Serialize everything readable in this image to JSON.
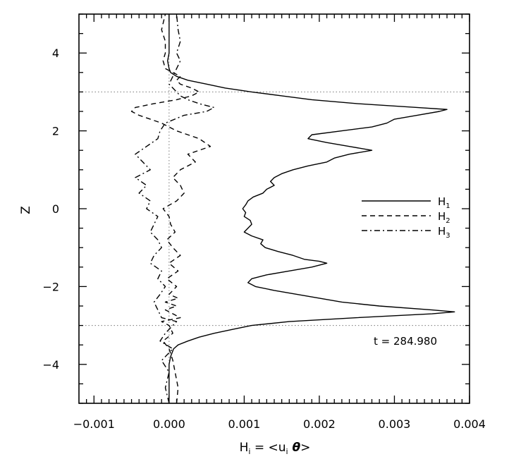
{
  "chart_data": {
    "type": "line",
    "title": "",
    "xlabel": {
      "main": "H",
      "sub": "i",
      "eq": " = <u",
      "sub2": "i",
      "theta": " θ",
      "close": ">"
    },
    "ylabel": "Z",
    "xlim": [
      -0.0012,
      0.004
    ],
    "ylim": [
      -5,
      5
    ],
    "x_ticks": [
      -0.001,
      0.0,
      0.001,
      0.002,
      0.003,
      0.004
    ],
    "x_tick_labels": [
      "−0.001",
      "0.000",
      "0.001",
      "0.002",
      "0.003",
      "0.004"
    ],
    "y_ticks": [
      -4,
      -2,
      0,
      2,
      4
    ],
    "y_tick_labels": [
      "−4",
      "−2",
      "0",
      "2",
      "4"
    ],
    "reference_lines": {
      "vertical_x": 0.0,
      "horizontal_z": [
        3,
        -3
      ]
    },
    "annotation": "t = 284.980",
    "legend": {
      "placement": "right-middle",
      "entries": [
        {
          "main": "H",
          "sub": "1",
          "dash": "solid"
        },
        {
          "main": "H",
          "sub": "2",
          "dash": "dashed"
        },
        {
          "main": "H",
          "sub": "3",
          "dash": "dashdot"
        }
      ]
    },
    "series": [
      {
        "key": "H1",
        "dash": "solid",
        "z": [
          -5.0,
          -4.5,
          -4.0,
          -3.8,
          -3.6,
          -3.5,
          -3.4,
          -3.3,
          -3.2,
          -3.1,
          -3.0,
          -2.9,
          -2.8,
          -2.7,
          -2.65,
          -2.6,
          -2.5,
          -2.4,
          -2.3,
          -2.2,
          -2.1,
          -2.0,
          -1.9,
          -1.8,
          -1.7,
          -1.6,
          -1.5,
          -1.4,
          -1.35,
          -1.3,
          -1.2,
          -1.1,
          -1.0,
          -0.9,
          -0.8,
          -0.7,
          -0.6,
          -0.5,
          -0.4,
          -0.3,
          -0.2,
          -0.1,
          0.0,
          0.1,
          0.2,
          0.3,
          0.4,
          0.5,
          0.6,
          0.7,
          0.8,
          0.9,
          1.0,
          1.1,
          1.2,
          1.3,
          1.4,
          1.5,
          1.6,
          1.7,
          1.8,
          1.9,
          2.0,
          2.1,
          2.2,
          2.3,
          2.4,
          2.5,
          2.55,
          2.6,
          2.7,
          2.8,
          2.9,
          3.0,
          3.1,
          3.2,
          3.3,
          3.4,
          3.5,
          3.6,
          3.8,
          4.0,
          4.5,
          5.0
        ],
        "x": [
          0.0,
          0.0,
          0.0,
          2e-05,
          6e-05,
          0.00012,
          0.00025,
          0.0004,
          0.0006,
          0.00085,
          0.0011,
          0.0016,
          0.0025,
          0.0035,
          0.0038,
          0.0035,
          0.0028,
          0.0023,
          0.002,
          0.0017,
          0.0014,
          0.00115,
          0.00105,
          0.0011,
          0.0013,
          0.0016,
          0.0019,
          0.0021,
          0.002,
          0.0018,
          0.00165,
          0.00145,
          0.00128,
          0.00122,
          0.00125,
          0.0011,
          0.001,
          0.00105,
          0.0011,
          0.00108,
          0.001,
          0.00102,
          0.00098,
          0.00102,
          0.00105,
          0.00112,
          0.00125,
          0.0013,
          0.0014,
          0.00135,
          0.0014,
          0.0015,
          0.00165,
          0.00185,
          0.0021,
          0.0022,
          0.0024,
          0.0027,
          0.0024,
          0.0021,
          0.00185,
          0.0019,
          0.0023,
          0.0027,
          0.0029,
          0.003,
          0.0033,
          0.0036,
          0.0037,
          0.0033,
          0.0025,
          0.0019,
          0.0015,
          0.0011,
          0.00075,
          0.0005,
          0.00025,
          0.0001,
          2e-05,
          0.0,
          -2e-05,
          0.0,
          0.0,
          0.0
        ]
      },
      {
        "key": "H2",
        "dash": "dashed",
        "z": [
          -5.0,
          -4.6,
          -4.2,
          -3.9,
          -3.6,
          -3.4,
          -3.2,
          -3.0,
          -2.9,
          -2.8,
          -2.7,
          -2.6,
          -2.5,
          -2.4,
          -2.3,
          -2.2,
          -2.0,
          -1.8,
          -1.6,
          -1.4,
          -1.2,
          -1.0,
          -0.8,
          -0.6,
          -0.4,
          -0.2,
          0.0,
          0.2,
          0.4,
          0.6,
          0.8,
          1.0,
          1.2,
          1.4,
          1.6,
          1.8,
          2.0,
          2.2,
          2.4,
          2.5,
          2.6,
          2.7,
          2.8,
          2.9,
          3.0,
          3.1,
          3.2,
          3.3,
          3.4,
          3.6,
          3.8,
          4.0,
          4.3,
          4.6,
          5.0
        ],
        "x": [
          0.0001,
          0.00012,
          8e-05,
          5e-05,
          0.0,
          -8e-05,
          5e-05,
          0.0,
          -0.0001,
          0.00015,
          5e-05,
          -5e-05,
          0.0001,
          -5e-05,
          0.00012,
          0.0,
          0.0001,
          -3e-05,
          0.00012,
          0.0,
          0.00015,
          5e-05,
          -3e-05,
          8e-05,
          2e-05,
          0.0,
          -8e-05,
          0.0001,
          0.0002,
          0.00015,
          5e-05,
          0.00015,
          0.00035,
          0.00025,
          0.00055,
          0.0004,
          0.0001,
          -0.0001,
          -0.0004,
          -0.0005,
          -0.00045,
          -0.0002,
          0.0001,
          0.0003,
          0.0004,
          0.0003,
          0.00015,
          0.0001,
          0.00015,
          -5e-05,
          -8e-05,
          -5e-05,
          -5e-05,
          -0.0001,
          -5e-05
        ]
      },
      {
        "key": "H3",
        "dash": "dashdot",
        "z": [
          -5.0,
          -4.6,
          -4.2,
          -3.9,
          -3.6,
          -3.4,
          -3.2,
          -3.0,
          -2.9,
          -2.8,
          -2.6,
          -2.4,
          -2.2,
          -2.0,
          -1.8,
          -1.6,
          -1.4,
          -1.2,
          -1.0,
          -0.8,
          -0.6,
          -0.4,
          -0.2,
          0.0,
          0.2,
          0.4,
          0.6,
          0.8,
          1.0,
          1.2,
          1.4,
          1.6,
          1.8,
          2.0,
          2.2,
          2.4,
          2.5,
          2.6,
          2.7,
          2.8,
          2.9,
          3.0,
          3.2,
          3.4,
          3.6,
          3.8,
          4.0,
          4.3,
          4.6,
          5.0
        ],
        "x": [
          0.0,
          -5e-05,
          0.0,
          -0.0001,
          5e-05,
          -0.00012,
          -5e-05,
          5e-05,
          0.0001,
          -0.0001,
          -0.00015,
          -0.0002,
          -0.00012,
          -5e-05,
          -0.00015,
          -0.0001,
          -0.00025,
          -0.0002,
          -0.0001,
          -0.00015,
          -0.00025,
          -0.0002,
          -0.00015,
          -0.0003,
          -0.00025,
          -0.0004,
          -0.0003,
          -0.00045,
          -0.00025,
          -0.00035,
          -0.00045,
          -0.0003,
          -0.00015,
          -0.00012,
          -5e-05,
          0.0002,
          0.0005,
          0.0006,
          0.0004,
          0.00025,
          0.00015,
          0.0001,
          0.0,
          5e-05,
          0.0001,
          0.00015,
          0.0001,
          0.00015,
          0.00012,
          0.0001
        ]
      }
    ]
  }
}
